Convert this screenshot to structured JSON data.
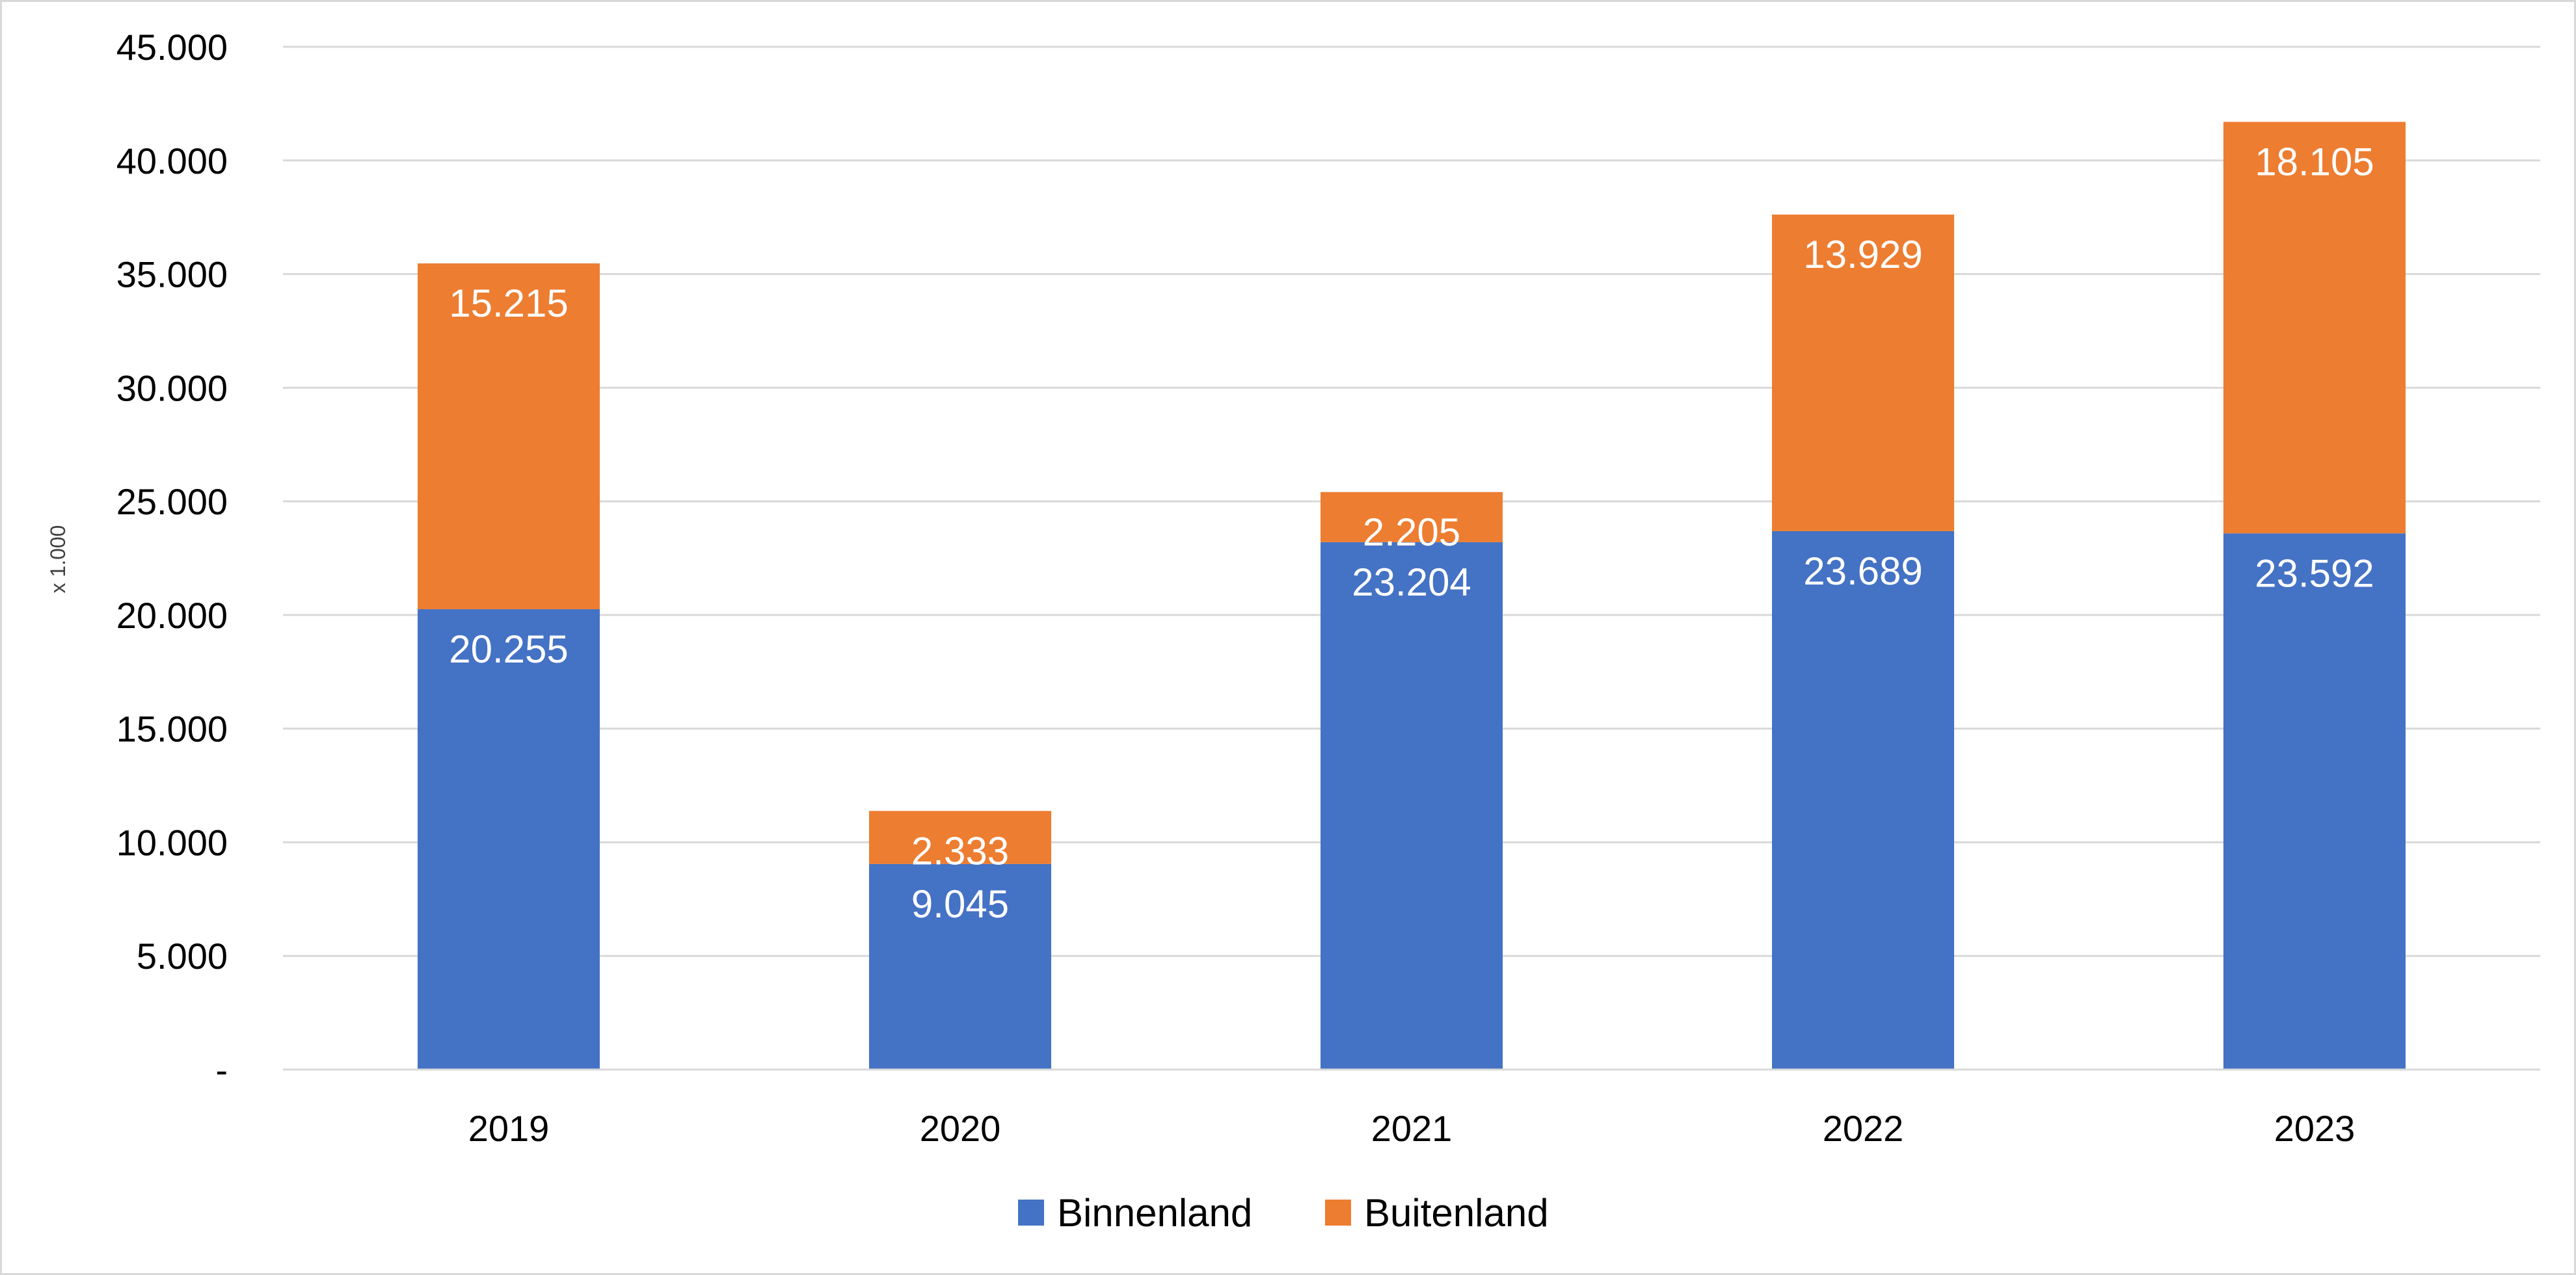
{
  "chart_data": {
    "type": "bar",
    "stacked": true,
    "title": "",
    "xlabel": "",
    "ylabel": "x 1.000",
    "ylim": [
      0,
      45000
    ],
    "ytick_values": [
      0,
      5000,
      10000,
      15000,
      20000,
      25000,
      30000,
      35000,
      40000,
      45000
    ],
    "ytick_labels": [
      "-",
      "5.000",
      "10.000",
      "15.000",
      "20.000",
      "25.000",
      "30.000",
      "35.000",
      "40.000",
      "45.000"
    ],
    "categories": [
      "2019",
      "2020",
      "2021",
      "2022",
      "2023"
    ],
    "grid": true,
    "legend_position": "bottom",
    "series": [
      {
        "name": "Binnenland",
        "color": "#4472c4",
        "values": [
          20255,
          9045,
          23204,
          23689,
          23592
        ],
        "labels": [
          "20.255",
          "9.045",
          "23.204",
          "23.689",
          "23.592"
        ]
      },
      {
        "name": "Buitenland",
        "color": "#ed7d31",
        "values": [
          15215,
          2333,
          2205,
          13929,
          18105
        ],
        "labels": [
          "15.215",
          "2.333",
          "2.205",
          "13.929",
          "18.105"
        ]
      }
    ]
  }
}
